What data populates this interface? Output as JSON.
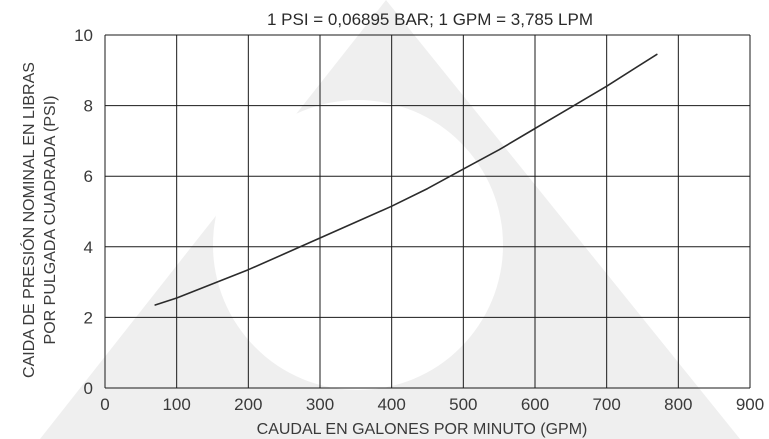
{
  "chart_data": {
    "type": "line",
    "title": "1 PSI = 0,06895 BAR; 1 GPM = 3,785 LPM",
    "xlabel": "CAUDAL EN GALONES POR MINUTO (GPM)",
    "ylabel_lines": [
      "CAIDA DE PRESIÓN NOMINAL EN LIBRAS",
      "POR PULGADA CUADRADA (PSI)"
    ],
    "xlim": [
      0,
      900
    ],
    "ylim": [
      0,
      10
    ],
    "xticks": [
      0,
      100,
      200,
      300,
      400,
      500,
      600,
      700,
      800,
      900
    ],
    "yticks": [
      0,
      2,
      4,
      6,
      8,
      10
    ],
    "grid": true,
    "series": [
      {
        "x": [
          70,
          100,
          150,
          200,
          250,
          300,
          350,
          400,
          450,
          500,
          550,
          600,
          650,
          700,
          770
        ],
        "values": [
          2.35,
          2.55,
          2.95,
          3.35,
          3.8,
          4.25,
          4.7,
          5.15,
          5.65,
          6.2,
          6.75,
          7.35,
          7.95,
          8.55,
          9.45
        ]
      }
    ]
  },
  "colors": {
    "background_watermark": "#efefef",
    "watermark_circle": "#ffffff",
    "grid": "#1a1a1a",
    "line": "#2b2b2b",
    "text": "#3a3a3a"
  }
}
